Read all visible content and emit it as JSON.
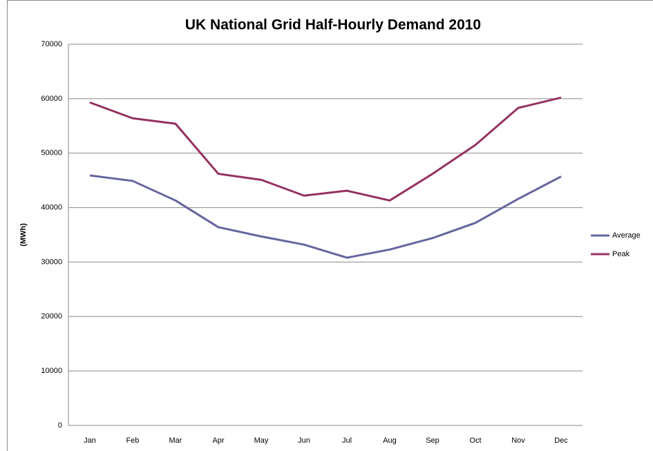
{
  "chart_data": {
    "type": "line",
    "title": "UK National Grid Half-Hourly Demand 2010",
    "y_label": "(MWh)",
    "categories": [
      "Jan",
      "Feb",
      "Mar",
      "Apr",
      "May",
      "Jun",
      "Jul",
      "Aug",
      "Sep",
      "Oct",
      "Nov",
      "Dec"
    ],
    "series": [
      {
        "name": "Average",
        "color": "#65659f",
        "values": [
          45900,
          44900,
          41300,
          36400,
          34700,
          33200,
          30800,
          32300,
          34400,
          37200,
          41600,
          45700
        ]
      },
      {
        "name": "Peak",
        "color": "#953160",
        "values": [
          59300,
          56400,
          55400,
          46200,
          45100,
          42200,
          43100,
          41300,
          46200,
          51500,
          58300,
          60200
        ]
      }
    ],
    "ylim": [
      0,
      70000
    ],
    "yticks": [
      0,
      10000,
      20000,
      30000,
      40000,
      50000,
      60000,
      70000
    ],
    "grid": true,
    "legend": "right"
  }
}
